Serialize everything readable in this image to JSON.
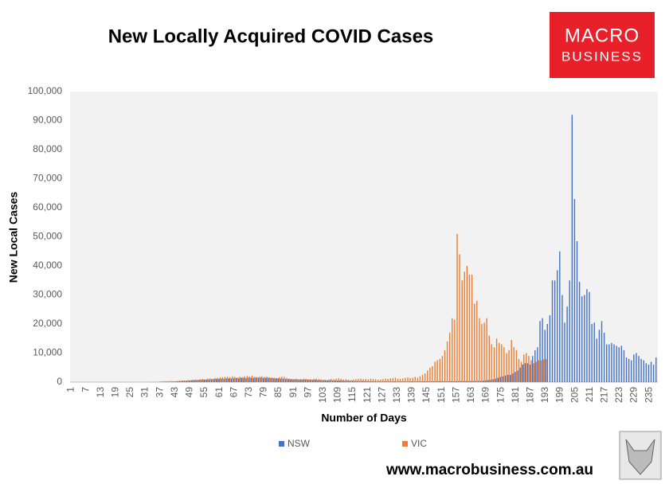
{
  "chart_data": {
    "type": "bar",
    "title": "New Locally Acquired COVID Cases",
    "xlabel": "Number of Days",
    "ylabel": "New Local Cases",
    "ylim": [
      0,
      100000
    ],
    "yticks": [
      0,
      {
        "value": 10000,
        "label": "10,000"
      },
      {
        "value": 20000,
        "label": "20,000"
      },
      {
        "value": 30000,
        "label": "30,000"
      },
      {
        "value": 40000,
        "label": "40,000"
      },
      {
        "value": 50000,
        "label": "50,000"
      },
      {
        "value": 60000,
        "label": "60,000"
      },
      {
        "value": 70000,
        "label": "70,000"
      },
      {
        "value": 80000,
        "label": "80,000"
      },
      {
        "value": 90000,
        "label": "90,000"
      },
      {
        "value": 100000,
        "label": "100,000"
      }
    ],
    "grid": false,
    "legend": "bottom",
    "categories": [
      "1",
      null,
      null,
      null,
      null,
      null,
      "7",
      null,
      null,
      null,
      null,
      null,
      "13",
      null,
      null,
      null,
      null,
      null,
      "19",
      null,
      null,
      null,
      null,
      null,
      "25",
      null,
      null,
      null,
      null,
      null,
      "31",
      null,
      null,
      null,
      null,
      null,
      "37",
      null,
      null,
      null,
      null,
      null,
      "43",
      null,
      null,
      null,
      null,
      null,
      "49",
      null,
      null,
      null,
      null,
      null,
      "55",
      null,
      null,
      null,
      null,
      null,
      "61",
      null,
      null,
      null,
      null,
      null,
      "67",
      null,
      null,
      null,
      null,
      null,
      "73",
      null,
      null,
      null,
      null,
      null,
      "79",
      null,
      null,
      null,
      null,
      null,
      "85",
      null,
      null,
      null,
      null,
      null,
      "91",
      null,
      null,
      null,
      null,
      null,
      "97",
      null,
      null,
      null,
      null,
      null,
      "103",
      null,
      null,
      null,
      null,
      null,
      "109",
      null,
      null,
      null,
      null,
      null,
      "115",
      null,
      null,
      null,
      null,
      null,
      "121",
      null,
      null,
      null,
      null,
      null,
      "127",
      null,
      null,
      null,
      null,
      null,
      "133",
      null,
      null,
      null,
      null,
      null,
      "139",
      null,
      null,
      null,
      null,
      null,
      "145",
      null,
      null,
      null,
      null,
      null,
      "151",
      null,
      null,
      null,
      null,
      null,
      "157",
      null,
      null,
      null,
      null,
      null,
      "163",
      null,
      null,
      null,
      null,
      null,
      "169",
      null,
      null,
      null,
      null,
      null,
      "175",
      null,
      null,
      null,
      null,
      null,
      "181",
      null,
      null,
      null,
      null,
      null,
      "187",
      null,
      null,
      null,
      null,
      null,
      "193",
      null,
      null,
      null,
      null,
      null,
      "199",
      null,
      null,
      null,
      null,
      null,
      "205",
      null,
      null,
      null,
      null,
      null,
      "211",
      null,
      null,
      null,
      null,
      null,
      "217",
      null,
      null,
      null,
      null,
      null,
      "223",
      null,
      null,
      null,
      null,
      null,
      "229",
      null,
      null,
      null,
      null,
      null,
      "235",
      null,
      null,
      null
    ],
    "series": [
      {
        "name": "NSW",
        "color": "#4472c4",
        "values": [
          0,
          0,
          0,
          0,
          0,
          0,
          0,
          0,
          0,
          0,
          0,
          5,
          10,
          5,
          0,
          10,
          5,
          0,
          10,
          5,
          5,
          10,
          5,
          0,
          10,
          5,
          5,
          10,
          5,
          0,
          10,
          20,
          30,
          40,
          50,
          60,
          80,
          100,
          120,
          150,
          180,
          200,
          250,
          300,
          350,
          400,
          450,
          500,
          550,
          600,
          650,
          700,
          750,
          800,
          850,
          900,
          950,
          1000,
          1050,
          1100,
          1100,
          1200,
          1150,
          1250,
          1300,
          1200,
          1350,
          1400,
          1300,
          1450,
          1500,
          1400,
          1550,
          1500,
          1450,
          1600,
          1500,
          1550,
          1400,
          1500,
          1450,
          1400,
          1350,
          1300,
          1250,
          1200,
          1150,
          1100,
          1050,
          1000,
          950,
          1000,
          900,
          950,
          850,
          900,
          800,
          850,
          750,
          800,
          700,
          750,
          650,
          700,
          600,
          650,
          550,
          600,
          500,
          550,
          500,
          450,
          500,
          400,
          450,
          350,
          400,
          300,
          350,
          300,
          300,
          250,
          300,
          250,
          200,
          250,
          200,
          250,
          200,
          220,
          200,
          250,
          200,
          230,
          210,
          240,
          200,
          220,
          250,
          230,
          250,
          260,
          240,
          270,
          250,
          280,
          260,
          290,
          270,
          300,
          310,
          290,
          320,
          300,
          330,
          310,
          340,
          320,
          350,
          330,
          360,
          340,
          380,
          360,
          400,
          420,
          450,
          500,
          600,
          700,
          800,
          1000,
          1200,
          1500,
          1800,
          2000,
          2300,
          2500,
          2500,
          3000,
          3500,
          4000,
          5000,
          6000,
          6500,
          6500,
          6000,
          9000,
          11000,
          12000,
          21000,
          22000,
          18000,
          20000,
          23000,
          35000,
          35000,
          38500,
          45000,
          30000,
          20500,
          26000,
          35000,
          92000,
          63000,
          48500,
          34500,
          29500,
          30000,
          32000,
          31000,
          20000,
          20500,
          15000,
          18000,
          21000,
          17000,
          13000,
          13000,
          13500,
          13000,
          12500,
          12000,
          12500,
          11000,
          8500,
          8000,
          7500,
          9500,
          10000,
          9000,
          8000,
          7500,
          6500,
          6000,
          7000,
          6000,
          8500
        ]
      },
      {
        "name": "VIC",
        "color": "#ed7d31",
        "values": [
          0,
          0,
          0,
          0,
          0,
          0,
          0,
          0,
          0,
          0,
          10,
          20,
          15,
          10,
          20,
          30,
          20,
          15,
          10,
          20,
          20,
          15,
          10,
          20,
          15,
          10,
          20,
          15,
          10,
          20,
          15,
          20,
          10,
          15,
          20,
          30,
          250,
          300,
          350,
          300,
          400,
          350,
          300,
          450,
          500,
          600,
          550,
          700,
          650,
          800,
          900,
          850,
          1000,
          1100,
          900,
          1200,
          1300,
          1100,
          1400,
          1500,
          1600,
          1700,
          1800,
          1900,
          1700,
          2000,
          1800,
          1600,
          1900,
          1700,
          2000,
          2100,
          1900,
          2200,
          1800,
          1700,
          1900,
          2000,
          1800,
          1900,
          1700,
          1600,
          1500,
          1400,
          1700,
          1900,
          1800,
          1500,
          1200,
          1100,
          1000,
          1100,
          900,
          1000,
          1200,
          1100,
          1000,
          900,
          1100,
          1200,
          1000,
          900,
          800,
          700,
          900,
          1100,
          1000,
          1200,
          1300,
          1100,
          900,
          1000,
          800,
          700,
          900,
          1000,
          1100,
          1200,
          1000,
          1100,
          900,
          1200,
          1100,
          1000,
          800,
          900,
          1000,
          1200,
          1100,
          1300,
          1400,
          1500,
          1200,
          1100,
          1300,
          1500,
          1600,
          1400,
          1500,
          1800,
          1500,
          2000,
          2500,
          3000,
          4000,
          5000,
          5500,
          7000,
          7500,
          8000,
          9000,
          11000,
          14000,
          17000,
          22000,
          21500,
          51000,
          44000,
          35000,
          38000,
          40000,
          37000,
          37000,
          27000,
          28000,
          22000,
          20000,
          20500,
          22000,
          16000,
          13000,
          12000,
          15000,
          13500,
          13000,
          12000,
          10000,
          11000,
          14500,
          12000,
          11000,
          8000,
          7000,
          9500,
          10000,
          9000,
          7500,
          6500,
          7000,
          7500,
          7500,
          7800,
          8000,
          null,
          null,
          null,
          null,
          null,
          null,
          null,
          null,
          null,
          null,
          null,
          null,
          null,
          null,
          null,
          null,
          null,
          null,
          null,
          null,
          null,
          null,
          null,
          null,
          null,
          null,
          null,
          null,
          null,
          null,
          null,
          null,
          null,
          null,
          null,
          null,
          null,
          null,
          null,
          null,
          null,
          null,
          null,
          null,
          null
        ]
      }
    ]
  },
  "logo": {
    "line1": "MACRO",
    "line2": "BUSINESS"
  },
  "footer": "www.macrobusiness.com.au"
}
